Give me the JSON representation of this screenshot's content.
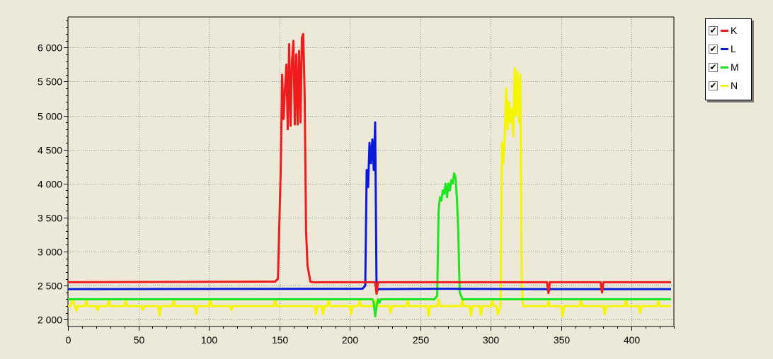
{
  "chart_data": {
    "type": "line",
    "title": "",
    "xlabel": "",
    "ylabel": "",
    "xlim": [
      0,
      430
    ],
    "ylim": [
      1900,
      6450
    ],
    "grid": true,
    "legend_position": "right",
    "x_ticks": [
      0,
      50,
      100,
      150,
      200,
      250,
      300,
      350,
      400
    ],
    "x_tick_labels": [
      "0",
      "50",
      "100",
      "150",
      "200",
      "250",
      "300",
      "350",
      "400"
    ],
    "y_ticks": [
      2000,
      2500,
      3000,
      3500,
      4000,
      4500,
      5000,
      5500,
      6000
    ],
    "y_tick_labels": [
      "2 000",
      "2 500",
      "3 000",
      "3 500",
      "4 000",
      "4 500",
      "5 000",
      "5 500",
      "6 000"
    ],
    "series": [
      {
        "name": "K",
        "color": "#ee1c1c",
        "x": [
          0,
          147,
          149,
          151,
          152,
          153,
          154,
          155,
          156,
          157,
          158,
          159,
          160,
          161,
          162,
          163,
          164,
          165,
          166,
          167,
          168,
          169,
          170,
          172,
          174,
          218,
          219,
          220,
          340,
          341,
          342,
          378,
          379,
          380,
          428
        ],
        "y": [
          2550,
          2560,
          2600,
          4200,
          5600,
          4950,
          5400,
          5750,
          4800,
          6050,
          4850,
          5800,
          6100,
          4870,
          5900,
          4870,
          5950,
          4900,
          6150,
          6200,
          5300,
          3300,
          2800,
          2560,
          2550,
          2550,
          2380,
          2550,
          2550,
          2390,
          2550,
          2550,
          2400,
          2550,
          2550
        ]
      },
      {
        "name": "L",
        "color": "#0a1bd8",
        "x": [
          0,
          209,
          211,
          212,
          213,
          214,
          215,
          216,
          217,
          218,
          219,
          220,
          222,
          260,
          340,
          341,
          342,
          428
        ],
        "y": [
          2450,
          2455,
          2500,
          4200,
          3950,
          4600,
          4300,
          4650,
          4200,
          4900,
          2400,
          2450,
          2450,
          2455,
          2450,
          2420,
          2450,
          2450
        ]
      },
      {
        "name": "M",
        "color": "#1ee61e",
        "x": [
          0,
          216,
          217,
          218,
          219,
          220,
          221,
          222,
          260,
          262,
          263,
          264,
          265,
          266,
          267,
          268,
          269,
          270,
          271,
          272,
          273,
          274,
          275,
          276,
          277,
          278,
          280,
          428
        ],
        "y": [
          2300,
          2300,
          2250,
          2050,
          2200,
          2300,
          2250,
          2300,
          2300,
          2350,
          3600,
          3800,
          3750,
          3900,
          3850,
          4000,
          3800,
          4000,
          3900,
          4050,
          4000,
          4150,
          4100,
          3800,
          3300,
          2400,
          2300,
          2300
        ]
      },
      {
        "name": "N",
        "color": "#f5f500",
        "x": [
          0,
          2,
          3,
          5,
          6,
          7,
          12,
          13,
          14,
          20,
          21,
          22,
          28,
          29,
          30,
          40,
          41,
          42,
          52,
          53,
          54,
          64,
          65,
          66,
          74,
          75,
          76,
          90,
          91,
          92,
          100,
          101,
          102,
          115,
          116,
          117,
          146,
          147,
          148,
          175,
          176,
          177,
          180,
          181,
          182,
          184,
          185,
          186,
          200,
          201,
          202,
          206,
          207,
          208,
          217,
          218,
          219,
          228,
          229,
          230,
          240,
          241,
          242,
          255,
          256,
          257,
          262,
          263,
          264,
          279,
          280,
          281,
          285,
          286,
          287,
          292,
          293,
          294,
          300,
          301,
          302,
          304,
          305,
          307,
          308,
          309,
          310,
          311,
          312,
          313,
          314,
          315,
          316,
          317,
          318,
          319,
          320,
          321,
          322,
          323,
          324,
          326,
          340,
          341,
          342,
          350,
          351,
          352,
          363,
          364,
          365,
          380,
          381,
          382,
          395,
          396,
          397,
          405,
          406,
          407,
          418,
          419,
          420,
          428
        ],
        "y": [
          2200,
          2200,
          2300,
          2200,
          2130,
          2200,
          2200,
          2300,
          2200,
          2200,
          2140,
          2200,
          2200,
          2300,
          2200,
          2200,
          2280,
          2200,
          2200,
          2140,
          2200,
          2200,
          2060,
          2200,
          2200,
          2300,
          2200,
          2200,
          2080,
          2200,
          2200,
          2300,
          2200,
          2200,
          2140,
          2200,
          2200,
          2300,
          2200,
          2200,
          2080,
          2200,
          2200,
          2080,
          2200,
          2200,
          2300,
          2200,
          2200,
          2080,
          2200,
          2200,
          2280,
          2200,
          2200,
          2280,
          2200,
          2200,
          2100,
          2200,
          2200,
          2300,
          2200,
          2200,
          2060,
          2200,
          2200,
          2300,
          2200,
          2200,
          2300,
          2200,
          2200,
          2060,
          2200,
          2200,
          2070,
          2200,
          2200,
          2300,
          2200,
          2200,
          2080,
          2200,
          4600,
          4300,
          4700,
          5400,
          4800,
          5200,
          4900,
          5100,
          4700,
          5700,
          5000,
          5650,
          4900,
          5600,
          2500,
          2200,
          2200,
          2200,
          2200,
          2280,
          2200,
          2200,
          2050,
          2200,
          2200,
          2300,
          2200,
          2200,
          2080,
          2200,
          2200,
          2300,
          2200,
          2200,
          2100,
          2200,
          2200,
          2280,
          2200,
          2200
        ]
      }
    ]
  },
  "legend": {
    "check_glyph": "✔",
    "items": [
      {
        "label": "K",
        "color": "#ee1c1c"
      },
      {
        "label": "L",
        "color": "#0a1bd8"
      },
      {
        "label": "M",
        "color": "#1ee61e"
      },
      {
        "label": "N",
        "color": "#f5f500"
      }
    ]
  }
}
